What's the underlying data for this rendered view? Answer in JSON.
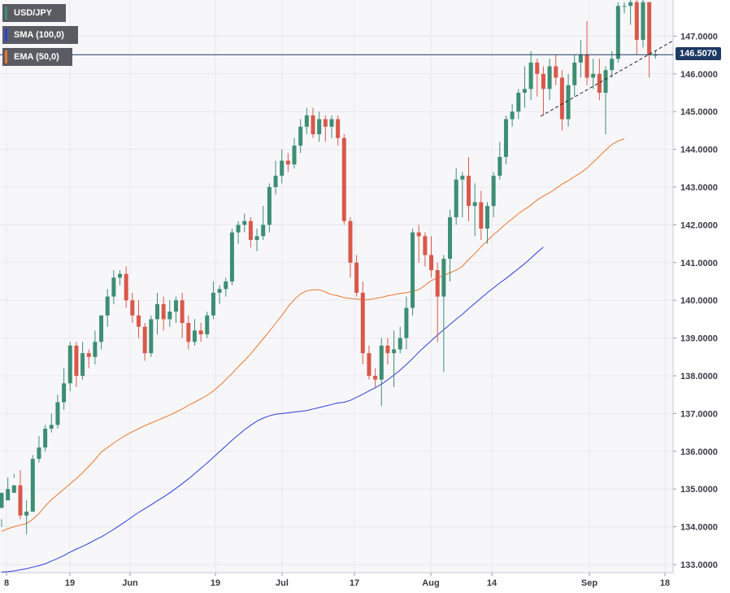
{
  "legend": {
    "symbol": "USD/JPY",
    "sma": "SMA (100,0)",
    "ema": "EMA (50,0)",
    "symbol_color": "#3d8e73",
    "sma_color": "#2b3fd6",
    "ema_color": "#e8772e"
  },
  "last_price": "146.5070",
  "chart_data": {
    "type": "candlestick",
    "title": "",
    "xlabel": "",
    "ylabel": "",
    "ylim": [
      132.8,
      148.0
    ],
    "y_ticks": [
      "133.0000",
      "134.0000",
      "135.0000",
      "136.0000",
      "137.0000",
      "138.0000",
      "139.0000",
      "140.0000",
      "141.0000",
      "142.0000",
      "143.0000",
      "144.0000",
      "145.0000",
      "146.0000",
      "147.0000"
    ],
    "x_tick_labels": [
      "8",
      "19",
      "Jun",
      "19",
      "Jul",
      "17",
      "Aug",
      "14",
      "Sep",
      "18"
    ],
    "last_price": 146.507,
    "up_color": "#3d8e73",
    "down_color": "#d9584a",
    "candles": [
      [
        134.5,
        134.9,
        134.2,
        134.0
      ],
      [
        134.7,
        135.0,
        134.9,
        135.3
      ],
      [
        134.9,
        135.1,
        135.3,
        135.4
      ],
      [
        135.1,
        134.3,
        135.5,
        134.2
      ],
      [
        134.3,
        134.4,
        134.7,
        133.8
      ],
      [
        134.4,
        135.8,
        135.9,
        134.4
      ],
      [
        135.8,
        136.1,
        136.4,
        135.7
      ],
      [
        136.1,
        136.6,
        136.7,
        136.0
      ],
      [
        136.6,
        136.7,
        137.0,
        136.5
      ],
      [
        136.7,
        137.3,
        137.5,
        136.6
      ],
      [
        137.3,
        137.8,
        138.2,
        137.1
      ],
      [
        137.8,
        138.8,
        138.9,
        137.6
      ],
      [
        138.8,
        138.0,
        138.9,
        137.7
      ],
      [
        138.0,
        138.6,
        138.9,
        137.9
      ],
      [
        138.6,
        138.5,
        138.7,
        138.2
      ],
      [
        138.5,
        138.9,
        139.2,
        138.3
      ],
      [
        138.9,
        139.6,
        139.6,
        138.7
      ],
      [
        139.6,
        140.1,
        140.3,
        139.3
      ],
      [
        140.1,
        140.6,
        140.8,
        139.9
      ],
      [
        140.6,
        140.7,
        140.8,
        140.4
      ],
      [
        140.7,
        140.0,
        140.9,
        139.8
      ],
      [
        140.0,
        139.6,
        140.2,
        139.4
      ],
      [
        139.6,
        139.3,
        140.0,
        139.0
      ],
      [
        139.3,
        138.6,
        139.4,
        138.4
      ],
      [
        138.6,
        139.5,
        139.6,
        138.5
      ],
      [
        139.5,
        139.9,
        140.2,
        139.1
      ],
      [
        139.9,
        139.5,
        140.1,
        139.2
      ],
      [
        139.5,
        139.7,
        140.0,
        139.3
      ],
      [
        139.7,
        140.0,
        140.1,
        139.4
      ],
      [
        140.0,
        139.4,
        140.2,
        139.0
      ],
      [
        139.4,
        138.9,
        139.6,
        138.7
      ],
      [
        138.9,
        139.2,
        139.5,
        138.8
      ],
      [
        139.2,
        139.1,
        139.4,
        138.9
      ],
      [
        139.1,
        139.6,
        139.7,
        139.0
      ],
      [
        139.6,
        140.2,
        140.5,
        139.5
      ],
      [
        140.2,
        140.3,
        140.4,
        139.9
      ],
      [
        140.3,
        140.5,
        140.6,
        140.1
      ],
      [
        140.5,
        141.8,
        141.9,
        140.4
      ],
      [
        141.8,
        142.0,
        142.1,
        141.5
      ],
      [
        142.0,
        142.1,
        142.3,
        141.8
      ],
      [
        142.1,
        141.6,
        142.2,
        141.4
      ],
      [
        141.6,
        141.7,
        141.9,
        141.3
      ],
      [
        141.7,
        142.0,
        142.5,
        141.6
      ],
      [
        142.0,
        143.0,
        143.1,
        141.8
      ],
      [
        143.0,
        143.3,
        143.7,
        142.8
      ],
      [
        143.3,
        143.7,
        144.0,
        143.1
      ],
      [
        143.7,
        143.6,
        143.9,
        143.4
      ],
      [
        143.6,
        144.1,
        144.3,
        143.5
      ],
      [
        144.1,
        144.6,
        144.8,
        143.9
      ],
      [
        144.6,
        144.9,
        145.1,
        144.4
      ],
      [
        144.9,
        144.4,
        145.1,
        144.3
      ],
      [
        144.4,
        144.8,
        145.0,
        144.2
      ],
      [
        144.8,
        144.6,
        144.9,
        144.2
      ],
      [
        144.6,
        144.8,
        144.9,
        144.3
      ],
      [
        144.8,
        144.3,
        144.9,
        144.1
      ],
      [
        144.3,
        142.1,
        144.4,
        142.0
      ],
      [
        142.1,
        141.0,
        142.2,
        140.6
      ],
      [
        141.0,
        140.2,
        141.2,
        140.1
      ],
      [
        140.2,
        138.6,
        140.5,
        138.3
      ],
      [
        138.6,
        138.0,
        138.8,
        137.9
      ],
      [
        138.0,
        137.9,
        138.2,
        137.7
      ],
      [
        137.9,
        138.8,
        139.0,
        137.2
      ],
      [
        138.8,
        138.6,
        139.0,
        138.3
      ],
      [
        138.6,
        138.7,
        139.2,
        137.7
      ],
      [
        138.7,
        139.0,
        139.3,
        138.6
      ],
      [
        139.0,
        139.8,
        140.1,
        138.7
      ],
      [
        139.8,
        141.8,
        141.9,
        139.6
      ],
      [
        141.8,
        141.7,
        142.0,
        141.0
      ],
      [
        141.7,
        141.2,
        141.8,
        140.9
      ],
      [
        141.2,
        140.8,
        141.7,
        140.6
      ],
      [
        140.8,
        140.1,
        141.0,
        138.9
      ],
      [
        140.1,
        141.1,
        141.2,
        138.1
      ],
      [
        141.1,
        142.2,
        142.4,
        140.5
      ],
      [
        142.2,
        143.2,
        143.5,
        142.0
      ],
      [
        143.2,
        143.3,
        143.4,
        142.2
      ],
      [
        143.3,
        142.5,
        143.8,
        142.1
      ],
      [
        142.5,
        142.6,
        143.1,
        141.7
      ],
      [
        142.6,
        141.9,
        142.9,
        141.6
      ],
      [
        141.9,
        142.5,
        142.6,
        141.5
      ],
      [
        142.5,
        143.3,
        143.4,
        142.2
      ],
      [
        143.3,
        143.8,
        144.2,
        143.2
      ],
      [
        143.8,
        144.8,
        144.9,
        143.6
      ],
      [
        144.8,
        145.0,
        145.2,
        144.6
      ],
      [
        145.0,
        145.5,
        145.6,
        144.8
      ],
      [
        145.5,
        145.6,
        146.2,
        145.1
      ],
      [
        145.6,
        146.3,
        146.6,
        145.3
      ],
      [
        146.3,
        146.0,
        146.4,
        145.4
      ],
      [
        146.0,
        145.6,
        146.2,
        144.9
      ],
      [
        145.6,
        146.2,
        146.4,
        145.3
      ],
      [
        146.2,
        145.9,
        146.5,
        145.7
      ],
      [
        145.9,
        144.8,
        146.1,
        144.5
      ],
      [
        144.8,
        145.7,
        146.0,
        144.6
      ],
      [
        145.7,
        146.3,
        146.5,
        145.4
      ],
      [
        146.3,
        146.5,
        146.9,
        145.9
      ],
      [
        146.5,
        145.9,
        147.4,
        145.7
      ],
      [
        145.9,
        146.0,
        146.4,
        145.6
      ],
      [
        146.0,
        145.5,
        146.4,
        145.3
      ],
      [
        145.5,
        146.1,
        146.2,
        144.4
      ],
      [
        146.1,
        146.4,
        146.6,
        145.9
      ],
      [
        146.4,
        147.8,
        147.9,
        146.3
      ],
      [
        147.8,
        147.8,
        147.9,
        147.6
      ],
      [
        147.8,
        147.9,
        148.0,
        147.3
      ],
      [
        147.9,
        146.9,
        148.0,
        146.5
      ],
      [
        146.9,
        147.9,
        148.0,
        146.7
      ],
      [
        147.9,
        146.5,
        147.9,
        145.9
      ],
      [
        146.5,
        146.507,
        146.6,
        146.4
      ]
    ],
    "series": [
      {
        "name": "EMA (50,0)",
        "color": "#e8772e",
        "values": [
          133.88,
          133.95,
          134.0,
          134.05,
          134.08,
          134.2,
          134.35,
          134.55,
          134.72,
          134.86,
          135.0,
          135.14,
          135.28,
          135.43,
          135.6,
          135.78,
          135.98,
          136.1,
          136.22,
          136.33,
          136.43,
          136.52,
          136.6,
          136.68,
          136.75,
          136.82,
          136.89,
          136.96,
          137.04,
          137.12,
          137.22,
          137.3,
          137.39,
          137.48,
          137.6,
          137.74,
          137.9,
          138.06,
          138.24,
          138.4,
          138.58,
          138.78,
          138.98,
          139.18,
          139.39,
          139.6,
          139.83,
          140.02,
          140.17,
          140.25,
          140.28,
          140.28,
          140.22,
          140.15,
          140.12,
          140.07,
          140.05,
          140.03,
          140.02,
          140.02,
          140.05,
          140.08,
          140.12,
          140.15,
          140.18,
          140.2,
          140.24,
          140.28,
          140.4,
          140.52,
          140.6,
          140.66,
          140.73,
          140.8,
          140.9,
          141.08,
          141.24,
          141.42,
          141.58,
          141.74,
          141.88,
          142.03,
          142.16,
          142.3,
          142.41,
          142.52,
          142.66,
          142.76,
          142.85,
          142.96,
          143.08,
          143.17,
          143.28,
          143.38,
          143.5,
          143.66,
          143.82,
          143.98,
          144.13,
          144.22,
          144.28
        ]
      },
      {
        "name": "SMA (100,0)",
        "color": "#2b3fd6",
        "values": [
          132.8,
          132.81,
          132.83,
          132.86,
          132.89,
          132.93,
          132.97,
          133.02,
          133.09,
          133.16,
          133.24,
          133.33,
          133.41,
          133.48,
          133.56,
          133.65,
          133.73,
          133.83,
          133.93,
          134.04,
          134.15,
          134.27,
          134.38,
          134.48,
          134.58,
          134.69,
          134.79,
          134.9,
          135.02,
          135.14,
          135.27,
          135.41,
          135.55,
          135.69,
          135.84,
          135.99,
          136.14,
          136.29,
          136.43,
          136.57,
          136.69,
          136.8,
          136.88,
          136.94,
          136.98,
          137.0,
          137.02,
          137.04,
          137.06,
          137.08,
          137.12,
          137.16,
          137.2,
          137.24,
          137.28,
          137.3,
          137.35,
          137.43,
          137.51,
          137.6,
          137.68,
          137.78,
          137.89,
          138.02,
          138.15,
          138.3,
          138.46,
          138.63,
          138.78,
          138.93,
          139.08,
          139.22,
          139.36,
          139.5,
          139.63,
          139.78,
          139.92,
          140.06,
          140.2,
          140.33,
          140.46,
          140.58,
          140.71,
          140.84,
          140.97,
          141.12,
          141.27,
          141.41
        ]
      }
    ]
  }
}
